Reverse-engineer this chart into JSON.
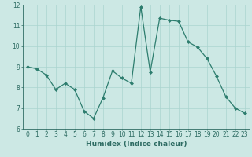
{
  "x": [
    0,
    1,
    2,
    3,
    4,
    5,
    6,
    7,
    8,
    9,
    10,
    11,
    12,
    13,
    14,
    15,
    16,
    17,
    18,
    19,
    20,
    21,
    22,
    23
  ],
  "y": [
    9.0,
    8.9,
    8.6,
    7.9,
    8.2,
    7.9,
    6.85,
    6.5,
    7.5,
    8.8,
    8.45,
    8.2,
    11.9,
    8.75,
    11.35,
    11.25,
    11.2,
    10.2,
    9.95,
    9.4,
    8.55,
    7.55,
    7.0,
    6.75
  ],
  "line_color": "#2d7d6e",
  "marker": "D",
  "markersize": 2.0,
  "linewidth": 0.9,
  "bg_color": "#cce8e4",
  "grid_color": "#aad4cf",
  "xlabel": "Humidex (Indice chaleur)",
  "ylim": [
    6,
    12
  ],
  "xlim": [
    -0.5,
    23.5
  ],
  "xticks": [
    0,
    1,
    2,
    3,
    4,
    5,
    6,
    7,
    8,
    9,
    10,
    11,
    12,
    13,
    14,
    15,
    16,
    17,
    18,
    19,
    20,
    21,
    22,
    23
  ],
  "yticks": [
    6,
    7,
    8,
    9,
    10,
    11,
    12
  ],
  "tick_color": "#2d6b62",
  "label_color": "#2d6b62",
  "xlabel_fontsize": 6.5,
  "tick_fontsize": 5.5,
  "spine_color": "#2d6b62"
}
